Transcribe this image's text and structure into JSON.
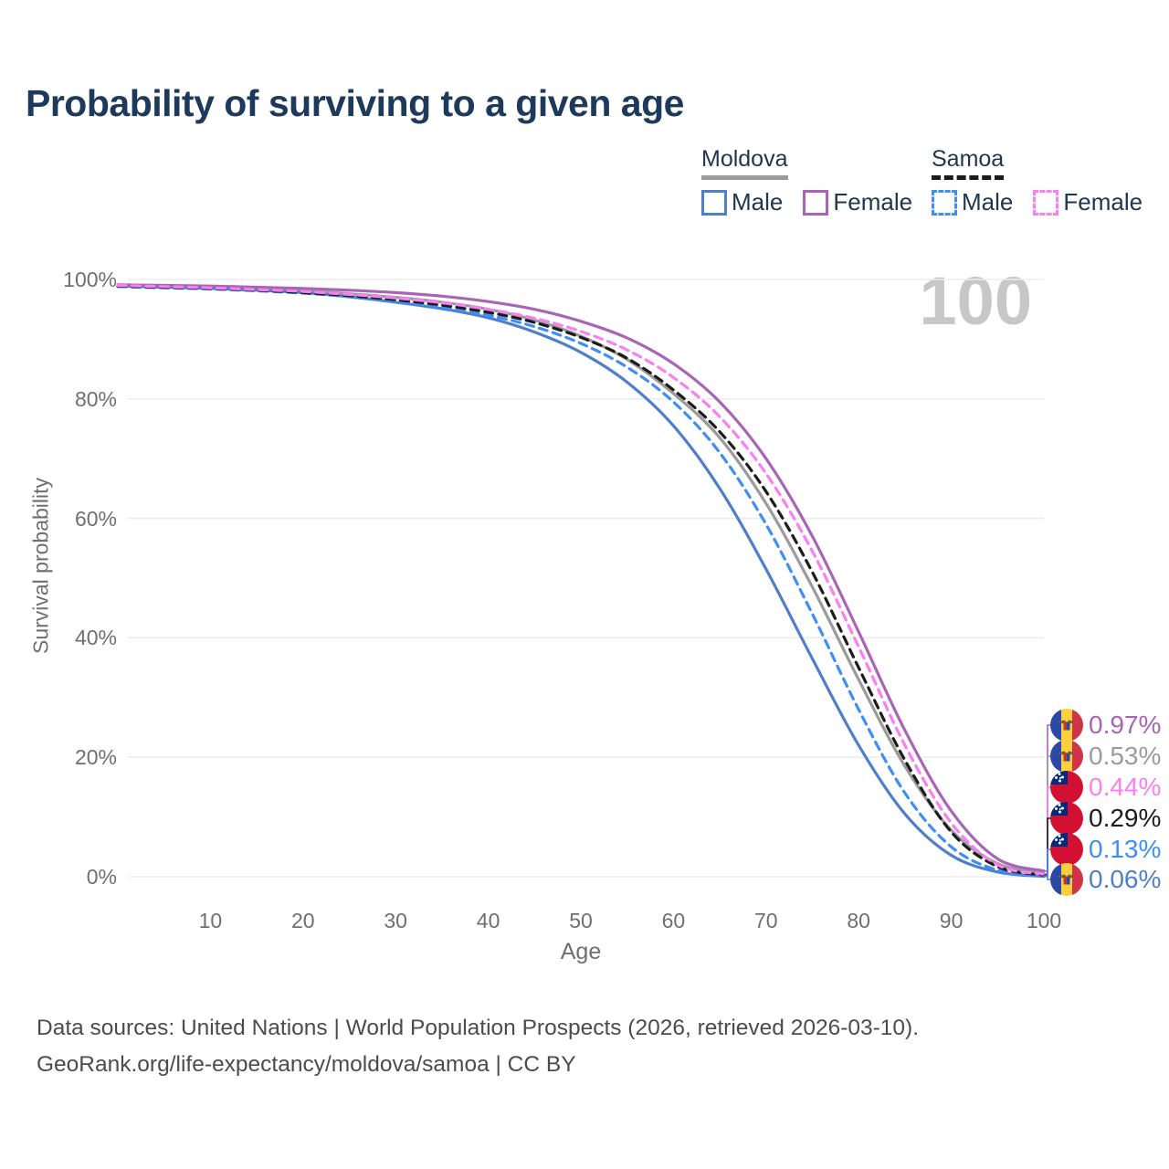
{
  "page": {
    "title": "Probability of surviving to a given age"
  },
  "legend": {
    "groups": [
      {
        "title": "Moldova",
        "line_style": "solid",
        "underline_color": "#9b9b9b",
        "items": [
          {
            "label": "Male",
            "color": "#4f7fca"
          },
          {
            "label": "Female",
            "color": "#a965b5"
          }
        ]
      },
      {
        "title": "Samoa",
        "line_style": "dashed",
        "underline_color": "#1c1c1c",
        "items": [
          {
            "label": "Male",
            "color": "#3f8ef7"
          },
          {
            "label": "Female",
            "color": "#fb7ef3"
          }
        ]
      }
    ]
  },
  "chart_data": {
    "type": "line",
    "title": "Probability of surviving to a given age",
    "watermark": "100",
    "grid": true,
    "legend_position": "top-right",
    "xlim": [
      0,
      100
    ],
    "ylim": [
      0,
      100
    ],
    "x_axis": {
      "label": "Age",
      "ticks": [
        10,
        20,
        30,
        40,
        50,
        60,
        70,
        80,
        90,
        100
      ]
    },
    "y_axis": {
      "label": "Survival probability",
      "ticks": [
        {
          "value": 0,
          "label": "0%"
        },
        {
          "value": 20,
          "label": "20%"
        },
        {
          "value": 40,
          "label": "40%"
        },
        {
          "value": 60,
          "label": "60%"
        },
        {
          "value": 80,
          "label": "80%"
        },
        {
          "value": 100,
          "label": "100%"
        }
      ]
    },
    "x": [
      0,
      5,
      10,
      15,
      20,
      25,
      30,
      35,
      40,
      45,
      50,
      55,
      60,
      65,
      70,
      75,
      80,
      85,
      90,
      95,
      100
    ],
    "series": [
      {
        "name": "Moldova Total",
        "country": "Moldova",
        "sex": "Total",
        "color": "#9b9b9b",
        "dash": false,
        "values": [
          99.0,
          98.8,
          98.6,
          98.4,
          98.1,
          97.6,
          97.0,
          96.2,
          95.0,
          93.2,
          90.5,
          86.6,
          80.9,
          73.5,
          62.5,
          48.5,
          33.0,
          18.5,
          7.8,
          2.2,
          0.53
        ]
      },
      {
        "name": "Moldova Male",
        "country": "Moldova",
        "sex": "Male",
        "color": "#4f7fca",
        "dash": false,
        "values": [
          98.9,
          98.7,
          98.5,
          98.2,
          97.8,
          97.1,
          96.2,
          95.1,
          93.6,
          91.2,
          87.8,
          82.8,
          75.5,
          65.0,
          51.5,
          36.5,
          22.0,
          10.5,
          3.6,
          0.8,
          0.06
        ]
      },
      {
        "name": "Moldova Female",
        "country": "Moldova",
        "sex": "Female",
        "color": "#a965b5",
        "dash": false,
        "values": [
          99.1,
          99.0,
          98.9,
          98.7,
          98.5,
          98.2,
          97.8,
          97.2,
          96.3,
          95.0,
          93.0,
          90.2,
          85.9,
          79.5,
          70.0,
          57.0,
          41.0,
          24.5,
          11.0,
          3.0,
          0.97
        ]
      },
      {
        "name": "Samoa Male",
        "country": "Samoa",
        "sex": "Male",
        "color": "#3f8ef7",
        "dash": true,
        "values": [
          98.8,
          98.6,
          98.4,
          98.1,
          97.7,
          97.1,
          96.3,
          95.3,
          94.0,
          92.1,
          89.3,
          85.3,
          79.5,
          71.0,
          59.0,
          44.0,
          28.0,
          14.0,
          5.0,
          1.1,
          0.13
        ]
      },
      {
        "name": "Samoa Total",
        "country": "Samoa",
        "sex": "Total",
        "color": "#1c1c1c",
        "dash": true,
        "values": [
          98.9,
          98.7,
          98.5,
          98.2,
          97.8,
          97.3,
          96.6,
          95.7,
          94.5,
          92.8,
          90.3,
          86.8,
          81.5,
          74.5,
          64.5,
          51.0,
          35.0,
          19.5,
          7.5,
          1.7,
          0.29
        ]
      },
      {
        "name": "Samoa Female",
        "country": "Samoa",
        "sex": "Female",
        "color": "#fb7ef3",
        "dash": true,
        "values": [
          99.0,
          98.8,
          98.6,
          98.3,
          98.0,
          97.5,
          96.9,
          96.1,
          95.0,
          93.5,
          91.3,
          88.2,
          83.6,
          77.0,
          67.5,
          54.5,
          38.5,
          22.0,
          9.0,
          2.0,
          0.44
        ]
      }
    ],
    "end_labels": [
      {
        "label": "0.97%",
        "series": "Moldova Female",
        "flag": "moldova",
        "color": "#a965b5"
      },
      {
        "label": "0.53%",
        "series": "Moldova Total",
        "flag": "moldova",
        "color": "#9b9b9b"
      },
      {
        "label": "0.44%",
        "series": "Samoa Female",
        "flag": "samoa",
        "color": "#fb7ef3"
      },
      {
        "label": "0.29%",
        "series": "Samoa Total",
        "flag": "samoa",
        "color": "#1c1c1c"
      },
      {
        "label": "0.13%",
        "series": "Samoa Male",
        "flag": "samoa",
        "color": "#3f8ef7"
      },
      {
        "label": "0.06%",
        "series": "Moldova Male",
        "flag": "moldova",
        "color": "#4f7fca"
      }
    ]
  },
  "footer": {
    "line1": "Data sources: United Nations | World Population Prospects (2026, retrieved 2026-03-10).",
    "line2": "GeoRank.org/life-expectancy/moldova/samoa | CC BY"
  }
}
